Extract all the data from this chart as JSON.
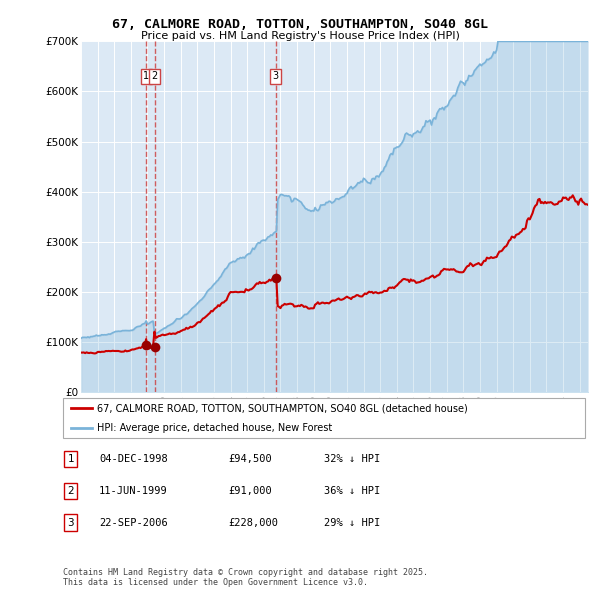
{
  "title": "67, CALMORE ROAD, TOTTON, SOUTHAMPTON, SO40 8GL",
  "subtitle": "Price paid vs. HM Land Registry's House Price Index (HPI)",
  "bg_color": "#dce9f5",
  "red_line_color": "#cc0000",
  "blue_line_color": "#7ab3d9",
  "red_dot_color": "#990000",
  "dashed_line_color": "#cc4444",
  "ylim": [
    0,
    700000
  ],
  "yticks": [
    0,
    100000,
    200000,
    300000,
    400000,
    500000,
    600000,
    700000
  ],
  "ytick_labels": [
    "£0",
    "£100K",
    "£200K",
    "£300K",
    "£400K",
    "£500K",
    "£600K",
    "£700K"
  ],
  "sale_dates_num": [
    1998.92,
    1999.44,
    2006.72
  ],
  "sale_prices": [
    94500,
    91000,
    228000
  ],
  "sale_labels": [
    "1",
    "2",
    "3"
  ],
  "legend_red": "67, CALMORE ROAD, TOTTON, SOUTHAMPTON, SO40 8GL (detached house)",
  "legend_blue": "HPI: Average price, detached house, New Forest",
  "table_data": [
    [
      "1",
      "04-DEC-1998",
      "£94,500",
      "32% ↓ HPI"
    ],
    [
      "2",
      "11-JUN-1999",
      "£91,000",
      "36% ↓ HPI"
    ],
    [
      "3",
      "22-SEP-2006",
      "£228,000",
      "29% ↓ HPI"
    ]
  ],
  "footer": "Contains HM Land Registry data © Crown copyright and database right 2025.\nThis data is licensed under the Open Government Licence v3.0.",
  "xstart": 1995.0,
  "xend": 2025.5
}
